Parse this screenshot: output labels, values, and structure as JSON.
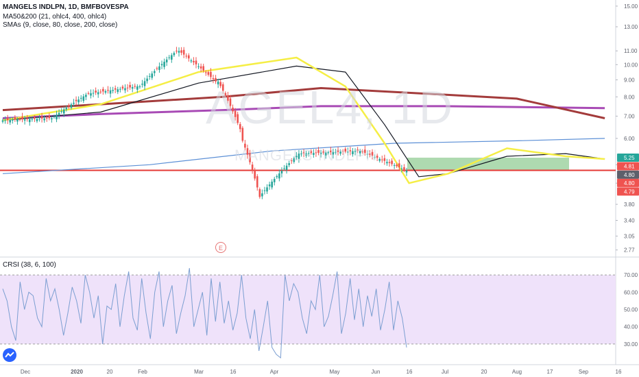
{
  "header": {
    "title": "MANGELS INDLPN, 1D, BMFBOVESPA",
    "indicator1": "MA50&200 (21, ohlc4, 400, ohlc4)",
    "indicator2": "SMAs (9, close, 80, close, 200, close)",
    "rsi_label": "CRSI (38, 6, 100)"
  },
  "watermark": {
    "symbol": "AGEL4, 1D",
    "name": "MANGELS INDLPN"
  },
  "event_marker": "E",
  "colors": {
    "up": "#26a69a",
    "down": "#ef5350",
    "sma9": "#f5ee45",
    "ma21": "#131722",
    "sma80": "#a33b3b",
    "sma200": "#a84ab5",
    "ma400": "#5b8fd6",
    "support": "#e53935",
    "target_zone": "#a5d6a7",
    "rsi_line": "#7b9ed1",
    "rsi_band": "#efe2fa"
  },
  "chart_data": [
    {
      "type": "candlestick",
      "y_scale": "log",
      "ylim": [
        2.65,
        15.5
      ],
      "y_ticks": [
        "15.00",
        "13.00",
        "11.00",
        "10.00",
        "9.00",
        "8.00",
        "7.00",
        "6.00",
        "5.00",
        "4.40",
        "3.80",
        "3.40",
        "3.05",
        "2.77"
      ],
      "x_ticks": [
        "Dec",
        "2020",
        "20",
        "Feb",
        "Mar",
        "16",
        "Apr",
        "May",
        "Jun",
        "16",
        "Jul",
        "20",
        "Aug",
        "17",
        "Sep",
        "16"
      ],
      "price_labels": [
        {
          "text": "5.25",
          "color": "#26a69a"
        },
        {
          "text": "4.81",
          "color": "#ef5350"
        },
        {
          "text": "4.80",
          "color": "#5d606b"
        },
        {
          "text": "4.80",
          "color": "#ef5350"
        },
        {
          "text": "4.79",
          "color": "#ef5350"
        }
      ],
      "support_level": 4.81,
      "target_zone": {
        "low": 4.8,
        "high": 5.25
      },
      "close_segments": [
        {
          "n": 20,
          "from": 6.8,
          "to": 6.9
        },
        {
          "n": 16,
          "from": 6.9,
          "to": 8.2
        },
        {
          "n": 20,
          "from": 8.2,
          "to": 8.6
        },
        {
          "n": 16,
          "from": 8.6,
          "to": 11.0
        },
        {
          "n": 16,
          "from": 11.0,
          "to": 8.9
        },
        {
          "n": 10,
          "from": 8.9,
          "to": 6.4
        },
        {
          "n": 8,
          "from": 5.9,
          "to": 4.0
        },
        {
          "n": 16,
          "from": 4.1,
          "to": 5.4
        },
        {
          "n": 24,
          "from": 5.4,
          "to": 5.5
        },
        {
          "n": 20,
          "from": 5.5,
          "to": 4.8
        }
      ],
      "lines": {
        "sma9": [
          [
            0,
            6.8
          ],
          [
            40,
            7.6
          ],
          [
            80,
            9.5
          ],
          [
            120,
            10.5
          ],
          [
            140,
            8.6
          ],
          [
            156,
            5.8
          ],
          [
            166,
            4.4
          ],
          [
            182,
            4.7
          ],
          [
            206,
            5.6
          ],
          [
            230,
            5.3
          ],
          [
            246,
            5.2
          ]
        ],
        "ma21": [
          [
            0,
            6.8
          ],
          [
            40,
            7.2
          ],
          [
            80,
            8.8
          ],
          [
            120,
            9.9
          ],
          [
            140,
            9.5
          ],
          [
            156,
            6.6
          ],
          [
            170,
            4.6
          ],
          [
            182,
            4.7
          ],
          [
            206,
            5.3
          ],
          [
            230,
            5.4
          ],
          [
            246,
            5.2
          ]
        ],
        "sma80": [
          [
            0,
            7.3
          ],
          [
            40,
            7.6
          ],
          [
            90,
            8.0
          ],
          [
            130,
            8.5
          ],
          [
            170,
            8.2
          ],
          [
            210,
            7.9
          ],
          [
            246,
            6.9
          ]
        ],
        "sma200": [
          [
            0,
            6.9
          ],
          [
            40,
            7.1
          ],
          [
            90,
            7.3
          ],
          [
            130,
            7.5
          ],
          [
            180,
            7.5
          ],
          [
            246,
            7.4
          ]
        ],
        "ma400": [
          [
            0,
            4.7
          ],
          [
            60,
            5.0
          ],
          [
            110,
            5.5
          ],
          [
            160,
            5.8
          ],
          [
            210,
            5.9
          ],
          [
            246,
            6.0
          ]
        ]
      }
    },
    {
      "type": "line",
      "title": "CRSI (38, 6, 100)",
      "ylim": [
        22,
        80
      ],
      "band": [
        30,
        70
      ],
      "y_ticks": [
        "70.00",
        "60.00",
        "50.00",
        "40.00",
        "30.00"
      ],
      "values": [
        62,
        55,
        40,
        32,
        66,
        50,
        60,
        58,
        45,
        40,
        68,
        55,
        62,
        50,
        35,
        48,
        63,
        55,
        42,
        70,
        60,
        45,
        58,
        30,
        52,
        50,
        65,
        40,
        58,
        72,
        45,
        38,
        68,
        48,
        33,
        60,
        72,
        40,
        55,
        64,
        36,
        48,
        58,
        74,
        40,
        50,
        60,
        35,
        68,
        43,
        66,
        42,
        55,
        38,
        48,
        70,
        45,
        33,
        50,
        26,
        40,
        55,
        28,
        24,
        22,
        70,
        55,
        65,
        60,
        45,
        36,
        55,
        50,
        70,
        40,
        46,
        58,
        72,
        36,
        48,
        68,
        44,
        62,
        40,
        58,
        46,
        62,
        38,
        50,
        66,
        38,
        55,
        45,
        28
      ]
    }
  ]
}
